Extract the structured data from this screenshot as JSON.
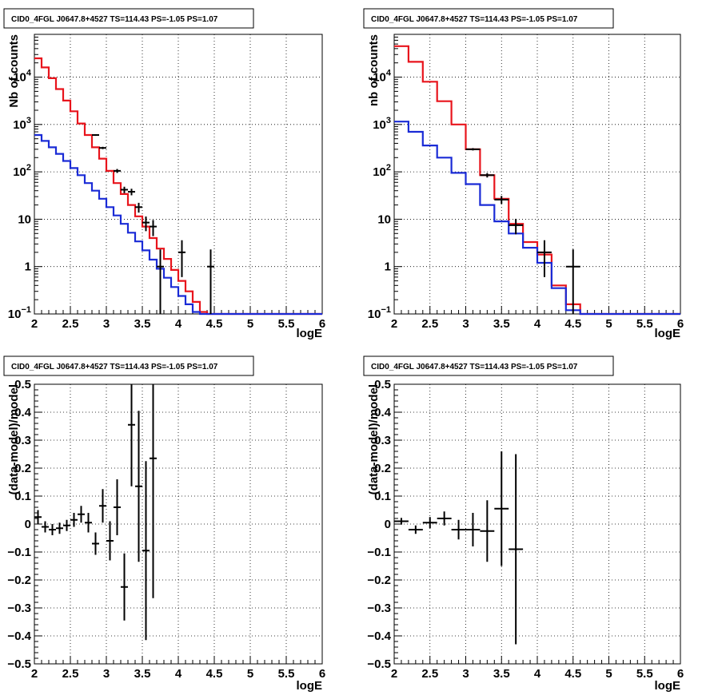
{
  "chart_data": [
    {
      "type": "line",
      "title": "CID0_4FGL J0647.8+4527 TS=114.43 PS=-1.05 PS=1.07",
      "xlabel": "logE",
      "ylabel": "Nb of counts",
      "xlim": [
        2,
        6
      ],
      "ylim": [
        0.1,
        80000
      ],
      "yscale": "log",
      "grid": true,
      "x_ticks": [
        "2",
        "2.5",
        "3",
        "3.5",
        "4",
        "4.5",
        "5",
        "5.5",
        "6"
      ],
      "y_ticks": [
        "10^-1",
        "1",
        "10",
        "10^2",
        "10^3",
        "10^4"
      ],
      "colors": {
        "model_total": "#e8141c",
        "model_component": "#1a2bd6",
        "data": "#000000"
      },
      "series": [
        {
          "type": "step",
          "bin_edges": [
            2.0,
            2.1,
            2.2,
            2.3,
            2.4,
            2.5,
            2.6,
            2.7,
            2.8,
            2.9,
            3.0,
            3.1,
            3.2,
            3.3,
            3.4,
            3.5,
            3.6,
            3.7,
            3.8,
            3.9,
            4.0,
            4.1,
            4.2,
            4.3,
            4.4,
            4.5,
            4.6,
            4.7,
            4.8,
            4.9,
            5.0,
            5.1,
            5.2,
            5.3,
            5.4,
            5.5,
            5.6,
            5.7,
            5.8,
            5.9,
            6.0
          ],
          "values": [
            25000,
            16000,
            9500,
            5600,
            3200,
            1900,
            1050,
            600,
            330,
            190,
            105,
            58,
            34,
            20,
            11.5,
            7,
            4,
            2.4,
            1.45,
            0.85,
            0.5,
            0.3,
            0.18,
            0.11,
            0.1,
            0.1,
            0.1,
            0.1,
            0.1,
            0.1,
            0.1,
            0.1,
            0.1,
            0.1,
            0.1,
            0.1,
            0.1,
            0.1,
            0.1,
            0.1
          ]
        },
        {
          "type": "step",
          "bin_edges": [
            2.0,
            2.1,
            2.2,
            2.3,
            2.4,
            2.5,
            2.6,
            2.7,
            2.8,
            2.9,
            3.0,
            3.1,
            3.2,
            3.3,
            3.4,
            3.5,
            3.6,
            3.7,
            3.8,
            3.9,
            4.0,
            4.1,
            4.2,
            4.3,
            4.4,
            4.5,
            4.6,
            4.7,
            4.8,
            4.9,
            5.0,
            5.1,
            5.2,
            5.3,
            5.4,
            5.5,
            5.6,
            5.7,
            5.8,
            5.9,
            6.0
          ],
          "values": [
            600,
            450,
            330,
            240,
            170,
            120,
            85,
            58,
            40,
            27,
            18,
            12,
            8,
            5.2,
            3.4,
            2.2,
            1.4,
            0.9,
            0.58,
            0.37,
            0.24,
            0.16,
            0.11,
            0.1,
            0.1,
            0.1,
            0.1,
            0.1,
            0.1,
            0.1,
            0.1,
            0.1,
            0.1,
            0.1,
            0.1,
            0.1,
            0.1,
            0.1,
            0.1,
            0.1
          ]
        },
        {
          "type": "errorbar",
          "x": [
            2.85,
            2.95,
            3.15,
            3.25,
            3.35,
            3.45,
            3.55,
            3.65,
            3.75,
            4.05,
            4.45
          ],
          "y": [
            600,
            320,
            105,
            42,
            38,
            18,
            8.5,
            7,
            1,
            2,
            1
          ],
          "yerr_low": [
            25,
            18,
            10,
            6.5,
            6,
            4.2,
            2.9,
            2.6,
            1,
            1.4,
            1
          ],
          "yerr_high": [
            25,
            18,
            10,
            6.5,
            6,
            4.2,
            2.9,
            2.6,
            1.3,
            1.6,
            1.3
          ],
          "xerr": 0.05
        }
      ]
    },
    {
      "type": "line",
      "title": "CID0_4FGL J0647.8+4527 TS=114.43 PS=-1.05 PS=1.07",
      "xlabel": "logE",
      "ylabel": "nb of counts",
      "xlim": [
        2,
        6
      ],
      "ylim": [
        0.1,
        80000
      ],
      "yscale": "log",
      "grid": true,
      "x_ticks": [
        "2",
        "2.5",
        "3",
        "3.5",
        "4",
        "4.5",
        "5",
        "5.5",
        "6"
      ],
      "y_ticks": [
        "10^-1",
        "1",
        "10",
        "10^2",
        "10^3",
        "10^4"
      ],
      "colors": {
        "model_total": "#e8141c",
        "model_component": "#1a2bd6",
        "data": "#000000"
      },
      "series": [
        {
          "type": "step",
          "bin_edges": [
            2.0,
            2.2,
            2.4,
            2.6,
            2.8,
            3.0,
            3.2,
            3.4,
            3.6,
            3.8,
            4.0,
            4.2,
            4.4,
            4.6,
            4.8,
            5.0,
            5.2,
            5.4,
            5.6,
            5.8,
            6.0
          ],
          "values": [
            45000,
            21000,
            8000,
            3100,
            1000,
            300,
            85,
            27,
            8,
            3.3,
            1.8,
            0.4,
            0.16,
            0.1,
            0.1,
            0.1,
            0.1,
            0.1,
            0.1,
            0.1
          ]
        },
        {
          "type": "step",
          "bin_edges": [
            2.0,
            2.2,
            2.4,
            2.6,
            2.8,
            3.0,
            3.2,
            3.4,
            3.6,
            3.8,
            4.0,
            4.2,
            4.4,
            4.6,
            4.8,
            5.0,
            5.2,
            5.4,
            5.6,
            5.8,
            6.0
          ],
          "values": [
            1150,
            700,
            360,
            200,
            95,
            55,
            20,
            9,
            5,
            2.5,
            1.2,
            0.35,
            0.12,
            0.1,
            0.1,
            0.1,
            0.1,
            0.1,
            0.1,
            0.1
          ]
        },
        {
          "type": "errorbar",
          "x": [
            3.1,
            3.3,
            3.5,
            3.7,
            4.1,
            4.5
          ],
          "y": [
            300,
            85,
            26,
            7.5,
            2,
            1
          ],
          "yerr_low": [
            17,
            9,
            5,
            2.7,
            1.4,
            1
          ],
          "yerr_high": [
            17,
            9,
            5,
            2.7,
            1.6,
            1.3
          ],
          "xerr": 0.1
        }
      ]
    },
    {
      "type": "scatter",
      "title": "CID0_4FGL J0647.8+4527 TS=114.43 PS=-1.05 PS=1.07",
      "xlabel": "logE",
      "ylabel": "(data-model)/model",
      "xlim": [
        2,
        6
      ],
      "ylim": [
        -0.5,
        0.5
      ],
      "grid": true,
      "x_ticks": [
        "2",
        "2.5",
        "3",
        "3.5",
        "4",
        "4.5",
        "5",
        "5.5",
        "6"
      ],
      "y_ticks": [
        "-0.5",
        "-0.4",
        "-0.3",
        "-0.2",
        "-0.1",
        "0",
        "0.1",
        "0.2",
        "0.3",
        "0.4",
        "0.5"
      ],
      "series": [
        {
          "type": "errorbar",
          "x": [
            2.05,
            2.15,
            2.25,
            2.35,
            2.45,
            2.55,
            2.65,
            2.75,
            2.85,
            2.95,
            3.05,
            3.15,
            3.25,
            3.35,
            3.45,
            3.55,
            3.65
          ],
          "y": [
            0.025,
            -0.01,
            -0.02,
            -0.015,
            -0.005,
            0.015,
            0.035,
            0.005,
            -0.07,
            0.065,
            -0.06,
            0.06,
            -0.225,
            0.355,
            0.135,
            -0.095,
            0.235
          ],
          "yerr": [
            0.025,
            0.02,
            0.02,
            0.02,
            0.02,
            0.025,
            0.03,
            0.035,
            0.04,
            0.06,
            0.07,
            0.1,
            0.12,
            0.22,
            0.27,
            0.32,
            0.5
          ],
          "xerr": 0.05
        }
      ]
    },
    {
      "type": "scatter",
      "title": "CID0_4FGL J0647.8+4527 TS=114.43 PS=-1.05 PS=1.07",
      "xlabel": "logE",
      "ylabel": "(data-model)/model",
      "xlim": [
        2,
        6
      ],
      "ylim": [
        -0.5,
        0.5
      ],
      "grid": true,
      "x_ticks": [
        "2",
        "2.5",
        "3",
        "3.5",
        "4",
        "4.5",
        "5",
        "5.5",
        "6"
      ],
      "y_ticks": [
        "-0.5",
        "-0.4",
        "-0.3",
        "-0.2",
        "-0.1",
        "0",
        "0.1",
        "0.2",
        "0.3",
        "0.4",
        "0.5"
      ],
      "series": [
        {
          "type": "errorbar",
          "x": [
            2.1,
            2.3,
            2.5,
            2.7,
            2.9,
            3.1,
            3.3,
            3.5,
            3.7
          ],
          "y": [
            0.01,
            -0.02,
            0.005,
            0.02,
            -0.02,
            -0.02,
            -0.025,
            0.055,
            -0.09
          ],
          "yerr": [
            0.012,
            0.015,
            0.02,
            0.025,
            0.035,
            0.06,
            0.11,
            0.205,
            0.34
          ],
          "xerr": 0.1
        }
      ]
    }
  ]
}
